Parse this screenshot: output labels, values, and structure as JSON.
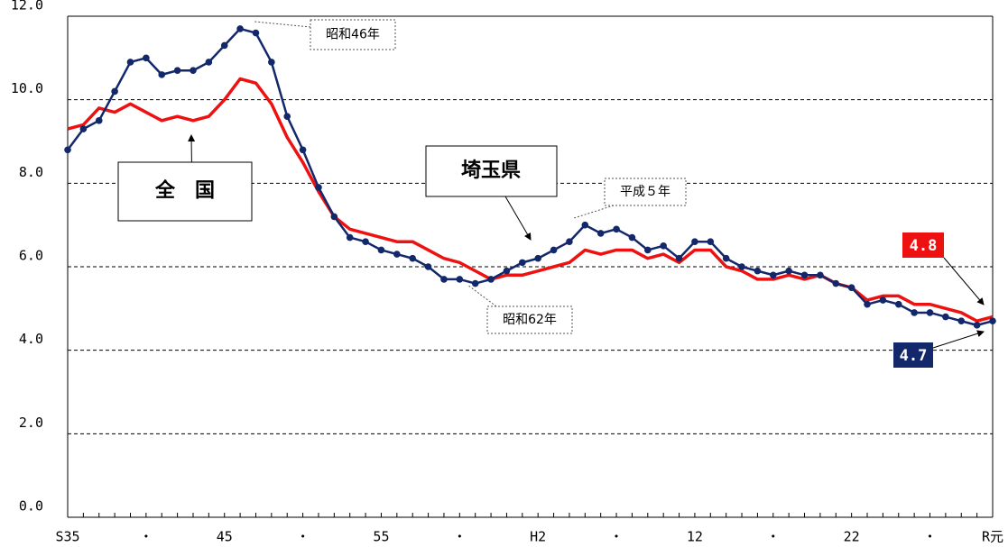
{
  "chart_data": {
    "type": "line",
    "categories": [
      "S35",
      null,
      null,
      null,
      null,
      "・",
      null,
      null,
      null,
      null,
      "45",
      null,
      null,
      null,
      null,
      "・",
      null,
      null,
      null,
      null,
      "55",
      null,
      null,
      null,
      null,
      "・",
      null,
      null,
      null,
      null,
      "H2",
      null,
      null,
      null,
      null,
      "・",
      null,
      null,
      null,
      null,
      "12",
      null,
      null,
      null,
      null,
      "・",
      null,
      null,
      null,
      null,
      "22",
      null,
      null,
      null,
      null,
      "・",
      null,
      null,
      null,
      "R元"
    ],
    "series": [
      {
        "name": "埼玉県",
        "color": "#13286b",
        "markers": true,
        "values": [
          8.8,
          9.3,
          9.5,
          10.2,
          10.9,
          11.0,
          10.6,
          10.7,
          10.7,
          10.9,
          11.3,
          11.7,
          11.6,
          10.9,
          9.6,
          8.8,
          7.9,
          7.2,
          6.7,
          6.6,
          6.4,
          6.3,
          6.2,
          6.0,
          5.7,
          5.7,
          5.6,
          5.7,
          5.9,
          6.1,
          6.2,
          6.4,
          6.6,
          7.0,
          6.8,
          6.9,
          6.7,
          6.4,
          6.5,
          6.2,
          6.6,
          6.6,
          6.2,
          6.0,
          5.9,
          5.8,
          5.9,
          5.8,
          5.8,
          5.6,
          5.5,
          5.1,
          5.2,
          5.1,
          4.9,
          4.9,
          4.8,
          4.7,
          4.6,
          4.7
        ],
        "value_labels": [
          null,
          null,
          null,
          null,
          null,
          null,
          null,
          null,
          null,
          null,
          null,
          null,
          null,
          null,
          null,
          null,
          null,
          null,
          null,
          null,
          null,
          null,
          null,
          null,
          null,
          null,
          null,
          null,
          null,
          null,
          null,
          null,
          null,
          null,
          null,
          null,
          null,
          null,
          null,
          null,
          null,
          null,
          null,
          null,
          null,
          null,
          null,
          null,
          null,
          null,
          null,
          null,
          null,
          null,
          null,
          null,
          null,
          null,
          null,
          "4.7"
        ]
      },
      {
        "name": "全　国",
        "color": "#ee1111",
        "markers": false,
        "values": [
          9.3,
          9.4,
          9.8,
          9.7,
          9.9,
          9.7,
          9.5,
          9.6,
          9.5,
          9.6,
          10.0,
          10.5,
          10.4,
          9.9,
          9.1,
          8.5,
          7.8,
          7.2,
          6.9,
          6.8,
          6.7,
          6.6,
          6.6,
          6.4,
          6.2,
          6.1,
          5.9,
          5.7,
          5.8,
          5.8,
          5.9,
          6.0,
          6.1,
          6.4,
          6.3,
          6.4,
          6.4,
          6.2,
          6.3,
          6.1,
          6.4,
          6.4,
          6.0,
          5.9,
          5.7,
          5.7,
          5.8,
          5.7,
          5.8,
          5.6,
          5.5,
          5.2,
          5.3,
          5.3,
          5.1,
          5.1,
          5.0,
          4.9,
          4.7,
          4.8
        ],
        "value_labels": [
          null,
          null,
          null,
          null,
          null,
          null,
          null,
          null,
          null,
          null,
          null,
          null,
          null,
          null,
          null,
          null,
          null,
          null,
          null,
          null,
          null,
          null,
          null,
          null,
          null,
          null,
          null,
          null,
          null,
          null,
          null,
          null,
          null,
          null,
          null,
          null,
          null,
          null,
          null,
          null,
          null,
          null,
          null,
          null,
          null,
          null,
          null,
          null,
          null,
          null,
          null,
          null,
          null,
          null,
          null,
          null,
          null,
          null,
          null,
          "4.8"
        ]
      }
    ],
    "annotations": [
      "昭和46年",
      "昭和62年",
      "平成５年"
    ],
    "ylim": [
      0,
      12
    ],
    "yticks": [
      {
        "value": 0,
        "label": "0.0"
      },
      {
        "value": 2,
        "label": "2.0"
      },
      {
        "value": 4,
        "label": "4.0"
      },
      {
        "value": 6,
        "label": "6.0"
      },
      {
        "value": 8,
        "label": "8.0"
      },
      {
        "value": 10,
        "label": "10.0"
      },
      {
        "value": 12,
        "label": "12.0"
      }
    ],
    "grid": true
  }
}
